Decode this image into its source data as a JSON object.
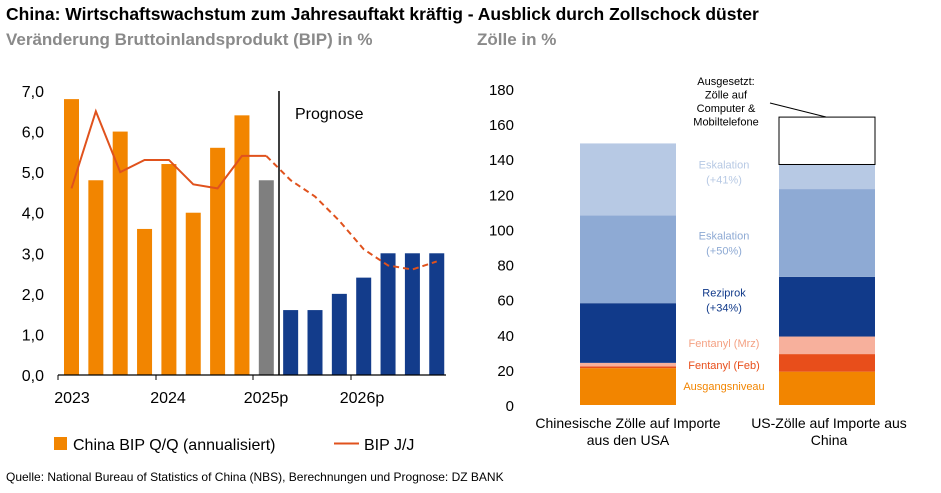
{
  "title": "China: Wirtschaftswachstum zum Jahresauftakt kräftig - Ausblick durch Zollschock düster",
  "left_subtitle": "Veränderung Bruttoinlandsprodukt (BIP) in %",
  "right_subtitle": "Zölle in %",
  "source": "Quelle: National Bureau of Statistics of China (NBS), Berechnungen und Prognose: DZ BANK",
  "colors": {
    "orange": "#f28500",
    "gray": "#7f7f7f",
    "navy": "#133c8b",
    "line": "#e0521d",
    "light_blue": "#b7c9e4",
    "mid_blue": "#8eaad4",
    "dark_blue": "#113a8a",
    "salmon": "#f7b09c",
    "red_orange": "#e84e1b"
  },
  "chart_data": [
    {
      "type": "bar",
      "annotation": "Prognose",
      "ylim": [
        0,
        7
      ],
      "yticks": [
        "0,0",
        "1,0",
        "2,0",
        "3,0",
        "4,0",
        "5,0",
        "6,0",
        "7,0"
      ],
      "xtick_labels": [
        "2023",
        "2024",
        "2025p",
        "2026p"
      ],
      "legend_position": "bottom",
      "series": [
        {
          "name": "China BIP Q/Q (annualisiert)",
          "kind": "bar",
          "values": [
            6.8,
            4.8,
            6.0,
            3.6,
            5.2,
            4.0,
            5.6,
            6.4,
            4.8,
            1.6,
            1.6,
            2.0,
            2.4,
            3.0,
            3.0,
            3.0
          ],
          "bar_types": [
            "actual",
            "actual",
            "actual",
            "actual",
            "actual",
            "actual",
            "actual",
            "actual",
            "latest",
            "forecast",
            "forecast",
            "forecast",
            "forecast",
            "forecast",
            "forecast",
            "forecast"
          ]
        },
        {
          "name": "BIP J/J",
          "kind": "line",
          "values": [
            4.6,
            6.5,
            5.0,
            5.3,
            5.3,
            4.7,
            4.6,
            5.4,
            5.4,
            4.8,
            4.4,
            3.8,
            3.1,
            2.7,
            2.6,
            2.8
          ]
        }
      ]
    },
    {
      "type": "bar",
      "stacked": true,
      "ylim": [
        0,
        180
      ],
      "yticks": [
        "0",
        "20",
        "40",
        "60",
        "80",
        "100",
        "120",
        "140",
        "160",
        "180"
      ],
      "categories": [
        "Chinesische Zölle auf Importe aus den USA",
        "US-Zölle auf Importe aus China"
      ],
      "category_lines": [
        [
          "Chinesische Zölle auf Importe",
          "aus den USA"
        ],
        [
          "US-Zölle auf Importe aus",
          "China"
        ]
      ],
      "series": [
        {
          "label": [
            "Ausgangsniveau"
          ],
          "color": "orange",
          "text_color": "#f28500",
          "values": [
            21,
            19
          ]
        },
        {
          "label": [
            "Fentanyl (Feb)"
          ],
          "color": "red_orange",
          "text_color": "#e84e1b",
          "values": [
            1,
            10
          ]
        },
        {
          "label": [
            "Fentanyl (Mrz)"
          ],
          "color": "salmon",
          "text_color": "#f4a183",
          "values": [
            2,
            10
          ]
        },
        {
          "label": [
            "Reziprok",
            "(+34%)"
          ],
          "color": "dark_blue",
          "text_color": "#113a8a",
          "values": [
            34,
            34
          ]
        },
        {
          "label": [
            "Eskalation",
            "(+50%)"
          ],
          "color": "mid_blue",
          "text_color": "#8eaad4",
          "values": [
            50,
            50
          ]
        },
        {
          "label": [
            "Eskalation",
            "(+41%)"
          ],
          "color": "light_blue",
          "text_color": "#b7c9e4",
          "values": [
            41,
            14
          ]
        }
      ],
      "suspended": {
        "label": [
          "Ausgesetzt:",
          "Zölle auf",
          "Computer &",
          "Mobiltelefone"
        ],
        "values": [
          0,
          27
        ]
      }
    }
  ]
}
